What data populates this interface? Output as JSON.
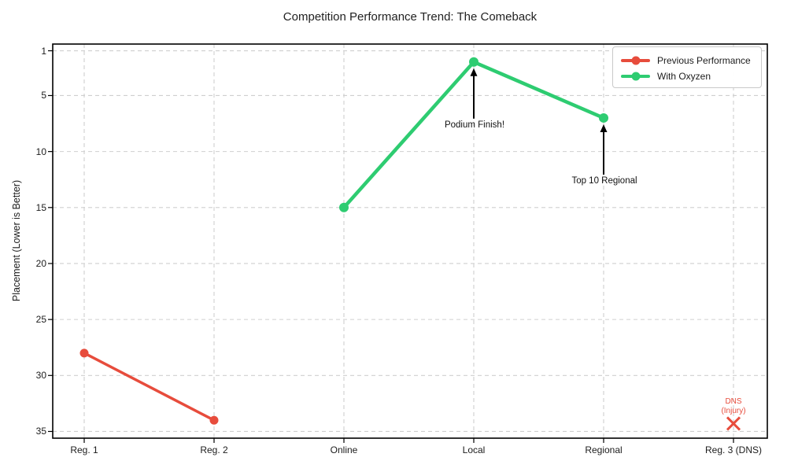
{
  "chart_data": {
    "type": "line",
    "title": "Competition Performance Trend: The Comeback",
    "xlabel": "",
    "ylabel": "Placement (Lower is Better)",
    "categories": [
      "Reg. 1",
      "Reg. 2",
      "Online",
      "Local",
      "Regional",
      "Reg. 3 (DNS)"
    ],
    "series": [
      {
        "name": "Previous Performance",
        "color": "#e74c3c",
        "values": [
          28,
          34,
          null,
          null,
          null,
          null
        ]
      },
      {
        "name": "With Oxyzen",
        "color": "#2ecc71",
        "values": [
          null,
          null,
          15,
          2,
          7,
          null
        ]
      }
    ],
    "yticks": [
      1,
      5,
      10,
      15,
      20,
      25,
      30,
      35
    ],
    "ylim": [
      0.4,
      35.6
    ],
    "y_axis_inverted": true,
    "grid": true,
    "legend_position": "upper right",
    "dns_marker": {
      "category": "Reg. 3 (DNS)",
      "category_index": 5,
      "value": 34.3,
      "symbol": "x",
      "color": "#e74c3c",
      "label_lines": [
        "DNS",
        "(Injury)"
      ]
    },
    "annotations": [
      {
        "text": "Podium Finish!",
        "category": "Local",
        "category_index": 3,
        "value": 2
      },
      {
        "text": "Top 10 Regional",
        "category": "Regional",
        "category_index": 4,
        "value": 7
      }
    ]
  },
  "colors": {
    "background": "#ffffff",
    "grid": "#cfcfcf",
    "axis": "#000000",
    "text": "#1c1c1c",
    "annotation_arrow": "#000000"
  }
}
